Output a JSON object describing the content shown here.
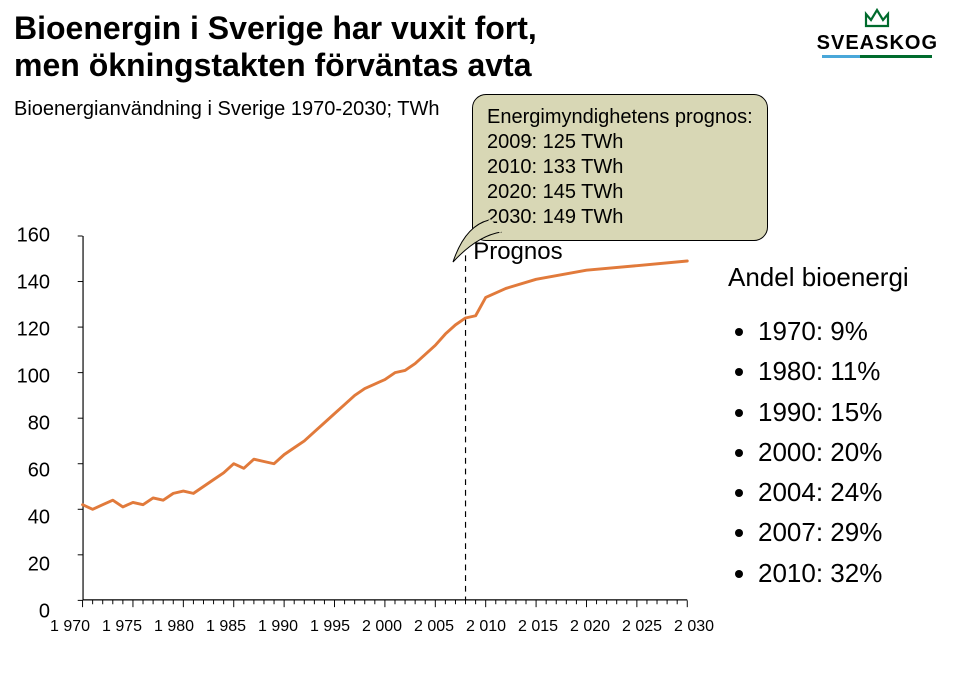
{
  "title_line1": "Bioenergin i Sverige har vuxit fort,",
  "title_line2": "men ökningstakten förväntas avta",
  "subtitle": "Bioenergianvändning i Sverige 1970-2030; TWh",
  "logo": {
    "text": "SVEASKOG",
    "underline_left": "#49a7d9",
    "underline_right": "#006b2d",
    "crown": "#006b2d"
  },
  "callout": {
    "bg": "#d8d7b5",
    "lines": [
      "Energimyndighetens prognos:",
      "2009: 125 TWh",
      "2010: 133 TWh",
      "2020: 145 TWh",
      "2030: 149 TWh"
    ]
  },
  "right": {
    "heading": "Andel bioenergi",
    "items": [
      "1970:   9%",
      "1980: 11%",
      "1990: 15%",
      "2000: 20%",
      "2004: 24%",
      "2007: 29%",
      "2010: 32%"
    ]
  },
  "chart": {
    "type": "line",
    "x_min": 1970,
    "x_max": 2030,
    "y_min": 0,
    "y_max": 160,
    "y_ticks": [
      0,
      20,
      40,
      60,
      80,
      100,
      120,
      140,
      160
    ],
    "x_ticks": [
      1970,
      1975,
      1980,
      1985,
      1990,
      1995,
      2000,
      2005,
      2010,
      2015,
      2020,
      2025,
      2030
    ],
    "axis_color": "#000000",
    "tick_fontsize": 20,
    "xtick_fontsize": 16,
    "line_color": "#e17a3b",
    "line_width": 3,
    "prognos_label": "Prognos",
    "prognos_x": 2008,
    "dash_color": "#000000",
    "series": [
      [
        1970,
        42
      ],
      [
        1971,
        40
      ],
      [
        1972,
        42
      ],
      [
        1973,
        44
      ],
      [
        1974,
        41
      ],
      [
        1975,
        43
      ],
      [
        1976,
        42
      ],
      [
        1977,
        45
      ],
      [
        1978,
        44
      ],
      [
        1979,
        47
      ],
      [
        1980,
        48
      ],
      [
        1981,
        47
      ],
      [
        1982,
        50
      ],
      [
        1983,
        53
      ],
      [
        1984,
        56
      ],
      [
        1985,
        60
      ],
      [
        1986,
        58
      ],
      [
        1987,
        62
      ],
      [
        1988,
        61
      ],
      [
        1989,
        60
      ],
      [
        1990,
        64
      ],
      [
        1991,
        67
      ],
      [
        1992,
        70
      ],
      [
        1993,
        74
      ],
      [
        1994,
        78
      ],
      [
        1995,
        82
      ],
      [
        1996,
        86
      ],
      [
        1997,
        90
      ],
      [
        1998,
        93
      ],
      [
        1999,
        95
      ],
      [
        2000,
        97
      ],
      [
        2001,
        100
      ],
      [
        2002,
        101
      ],
      [
        2003,
        104
      ],
      [
        2004,
        108
      ],
      [
        2005,
        112
      ],
      [
        2006,
        117
      ],
      [
        2007,
        121
      ],
      [
        2008,
        124
      ],
      [
        2009,
        125
      ],
      [
        2010,
        133
      ],
      [
        2012,
        137
      ],
      [
        2015,
        141
      ],
      [
        2020,
        145
      ],
      [
        2025,
        147
      ],
      [
        2030,
        149
      ]
    ]
  }
}
